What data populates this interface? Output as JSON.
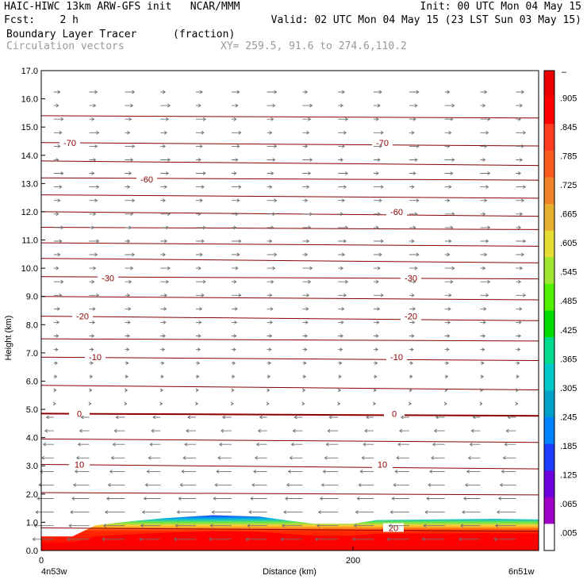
{
  "header": {
    "line1_left": "HAIC-HIWC 13km ARW-GFS init   NCAR/MMM",
    "line1_right": "Init: 00 UTC Mon 04 May 15",
    "line2_left": "Fcst:    2 h",
    "line2_right": "Valid: 02 UTC Mon 04 May 15 (23 LST Sun 03 May 15)",
    "field_name": "Boundary Layer Tracer",
    "field_units": "(fraction)",
    "vectors_label": "Circulation vectors",
    "xy_label": "XY= 259.5, 91.6 to 274.6,110.2"
  },
  "axes": {
    "ylabel": "Height (km)",
    "xlabel": "Distance (km)",
    "left_point": "4n53w",
    "right_point": "6n51w"
  },
  "chart_data": {
    "type": "area",
    "title": "Boundary Layer Tracer",
    "xlabel": "Distance (km)",
    "ylabel": "Height (km)",
    "xlim": [
      0,
      319
    ],
    "ylim": [
      0,
      17
    ],
    "x_ticks": [
      0,
      200
    ],
    "x_tick_labels": [
      "0",
      "200"
    ],
    "y_ticks": [
      0.0,
      1.0,
      2.0,
      3.0,
      4.0,
      5.0,
      6.0,
      7.0,
      8.0,
      9.0,
      10.0,
      11.0,
      12.0,
      13.0,
      14.0,
      15.0,
      16.0,
      17.0
    ],
    "y_tick_labels": [
      "0.0",
      "1.0",
      "2.0",
      "3.0",
      "4.0",
      "5.0",
      "6.0",
      "7.0",
      "8.0",
      "9.0",
      "10.0",
      "11.0",
      "12.0",
      "13.0",
      "14.0",
      "15.0",
      "16.0",
      "17.0"
    ],
    "colorbar": {
      "labels": [
        ".005",
        ".065",
        ".125",
        ".185",
        ".245",
        ".305",
        ".365",
        ".425",
        ".485",
        ".545",
        ".605",
        ".665",
        ".725",
        ".785",
        ".845",
        ".905"
      ],
      "colors": [
        "#ffffff",
        "#a000c8",
        "#6e00dc",
        "#1e3cff",
        "#0082ff",
        "#00a0c8",
        "#00c8c8",
        "#00dc8c",
        "#00dc00",
        "#50f000",
        "#a0e632",
        "#e6dc32",
        "#e6af2d",
        "#f08228",
        "#fa5a1e",
        "#ff3c1e",
        "#ff0000",
        "#ee0000"
      ],
      "top_label": "–"
    },
    "tracer_top_km": [
      [
        0,
        0.5
      ],
      [
        20,
        0.5
      ],
      [
        35,
        0.9
      ],
      [
        60,
        1.05
      ],
      [
        80,
        1.15
      ],
      [
        110,
        1.25
      ],
      [
        140,
        1.2
      ],
      [
        160,
        1.05
      ],
      [
        175,
        0.95
      ],
      [
        200,
        0.95
      ],
      [
        215,
        1.08
      ],
      [
        250,
        1.1
      ],
      [
        290,
        1.12
      ],
      [
        319,
        1.1
      ]
    ],
    "contour_interval_c": 10,
    "contours_labeled": [
      {
        "value": "-70",
        "y_km": 14.45
      },
      {
        "value": "-60",
        "y_km": 13.15
      },
      {
        "value": "-60",
        "y_km": 12.0
      },
      {
        "value": "-30",
        "y_km": 9.65
      },
      {
        "value": "-20",
        "y_km": 8.3
      },
      {
        "value": "-10",
        "y_km": 6.85
      },
      {
        "value": "0",
        "y_km": 4.85
      },
      {
        "value": "10",
        "y_km": 3.05
      },
      {
        "value": "20",
        "y_km": 0.8
      }
    ],
    "contour_lines_km": [
      15.4,
      14.45,
      13.8,
      13.2,
      12.6,
      12.0,
      11.45,
      10.9,
      10.35,
      9.7,
      9.0,
      8.3,
      7.5,
      6.85,
      5.85,
      4.85,
      3.95,
      3.05,
      2.05,
      0.8
    ],
    "grid": false,
    "legend": "right colorbar"
  }
}
